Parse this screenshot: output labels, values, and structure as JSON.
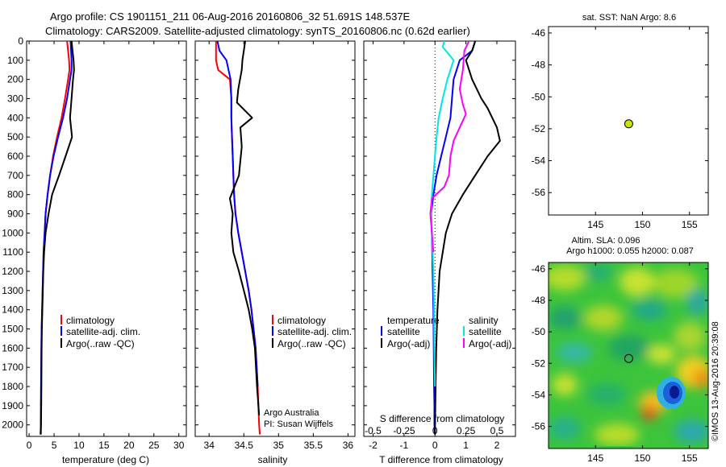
{
  "header": {
    "line1": "Argo profile: CS 1901151_211 06-Aug-2016 20160806_32 51.691S 148.537E",
    "line2": "Climatology: CARS2009. Satellite-adjusted climatology: synTS_20160806.nc (0.62d earlier)"
  },
  "credits": {
    "agency": "Argo Australia",
    "pi": "PI: Susan Wijffels",
    "timestamp": "©IMOS 13-Aug-2016 20:39:08"
  },
  "colors": {
    "climatology": "#ff0000",
    "satellite": "#0000ff",
    "argo": "#000000",
    "salinity_satellite": "#00e5e5",
    "salinity_argo": "#ff00ff",
    "marker": "#c8e600"
  },
  "chart_data": [
    {
      "type": "line",
      "id": "temperature",
      "xlabel": "temperature (deg C)",
      "ylabel": "",
      "xlim": [
        -0.5,
        31.5
      ],
      "ylim": [
        2060,
        0
      ],
      "xticks": [
        0,
        5,
        10,
        15,
        20,
        25,
        30
      ],
      "yticks": [
        0,
        100,
        200,
        300,
        400,
        500,
        600,
        700,
        800,
        900,
        1000,
        1100,
        1200,
        1300,
        1400,
        1500,
        1600,
        1700,
        1800,
        1900,
        2000
      ],
      "legend": [
        "climatology",
        "satellite-adj. clim.",
        "Argo(..raw -QC)"
      ],
      "legend_position": "lower-center",
      "series": [
        {
          "name": "climatology",
          "color": "#ff0000",
          "x": [
            7.6,
            7.8,
            8.0,
            8.1,
            7.8,
            7.2,
            6.5,
            5.6,
            4.8,
            4.2,
            3.7,
            3.3,
            3.1,
            2.9,
            2.8,
            2.7,
            2.6,
            2.5,
            2.45,
            2.4,
            2.35,
            2.3
          ],
          "y": [
            0,
            50,
            100,
            150,
            200,
            300,
            400,
            500,
            600,
            700,
            800,
            900,
            1000,
            1100,
            1200,
            1300,
            1400,
            1500,
            1600,
            1800,
            2000,
            2050
          ]
        },
        {
          "name": "satellite-adj. clim.",
          "color": "#0000ff",
          "x": [
            8.3,
            8.4,
            8.5,
            8.5,
            8.2,
            7.6,
            6.8,
            5.8,
            4.9,
            4.2,
            3.7,
            3.3,
            3.1,
            2.9,
            2.8,
            2.7,
            2.6,
            2.5,
            2.45,
            2.4,
            2.35,
            2.3
          ],
          "y": [
            0,
            50,
            100,
            150,
            200,
            300,
            400,
            500,
            600,
            700,
            800,
            900,
            1000,
            1100,
            1200,
            1300,
            1400,
            1500,
            1600,
            1800,
            2000,
            2050
          ]
        },
        {
          "name": "Argo(..raw -QC)",
          "color": "#000000",
          "x": [
            8.5,
            8.7,
            8.9,
            9.0,
            8.8,
            8.5,
            8.2,
            8.6,
            7.3,
            6.0,
            4.6,
            3.9,
            3.3,
            3.0,
            2.85,
            2.75,
            2.65,
            2.55,
            2.5,
            2.45,
            2.4,
            2.35
          ],
          "y": [
            0,
            50,
            100,
            150,
            200,
            300,
            400,
            500,
            600,
            700,
            800,
            900,
            1000,
            1100,
            1200,
            1300,
            1400,
            1500,
            1600,
            1800,
            2000,
            2050
          ]
        }
      ]
    },
    {
      "type": "line",
      "id": "salinity",
      "xlabel": "salinity",
      "ylabel": "",
      "xlim": [
        33.8,
        36.1
      ],
      "ylim": [
        2060,
        0
      ],
      "xticks": [
        34,
        34.5,
        35,
        35.5,
        36
      ],
      "legend": [
        "climatology",
        "satellite-adj. clim.",
        "Argo(..raw -QC)"
      ],
      "legend_position": "lower-center",
      "series": [
        {
          "name": "climatology",
          "color": "#ff0000",
          "x": [
            34.1,
            34.1,
            34.1,
            34.13,
            34.3,
            34.32,
            34.32,
            34.33,
            34.34,
            34.35,
            34.36,
            34.38,
            34.42,
            34.47,
            34.52,
            34.57,
            34.61,
            34.64,
            34.67,
            34.7,
            34.72,
            34.73
          ],
          "y": [
            0,
            50,
            100,
            150,
            200,
            300,
            400,
            500,
            600,
            700,
            800,
            900,
            1000,
            1100,
            1200,
            1300,
            1400,
            1500,
            1600,
            1800,
            2000,
            2050
          ]
        },
        {
          "name": "satellite-adj. clim.",
          "color": "#0000ff",
          "x": [
            34.12,
            34.15,
            34.25,
            34.28,
            34.31,
            34.32,
            34.32,
            34.33,
            34.34,
            34.35,
            34.36,
            34.38,
            34.42,
            34.47,
            34.52,
            34.57,
            34.61,
            34.64,
            34.67,
            34.7
          ],
          "y": [
            0,
            50,
            100,
            150,
            200,
            300,
            400,
            500,
            600,
            700,
            800,
            900,
            1000,
            1100,
            1200,
            1300,
            1400,
            1500,
            1600,
            1800
          ]
        },
        {
          "name": "Argo(..raw -QC)",
          "color": "#000000",
          "x": [
            34.52,
            34.5,
            34.48,
            34.47,
            34.42,
            34.4,
            34.62,
            34.45,
            34.47,
            34.43,
            34.3,
            34.34,
            34.32,
            34.35,
            34.43,
            34.5,
            34.57,
            34.62,
            34.66,
            34.69,
            34.72
          ],
          "y": [
            0,
            50,
            100,
            150,
            250,
            320,
            400,
            450,
            550,
            700,
            820,
            900,
            1000,
            1100,
            1200,
            1300,
            1400,
            1500,
            1600,
            1800,
            1950
          ]
        }
      ]
    },
    {
      "type": "line",
      "id": "difference",
      "xlabel": "T difference from climatology",
      "xlabel2": "S difference from climatology",
      "xlim": [
        -2.3,
        2.6
      ],
      "ylim": [
        2060,
        0
      ],
      "xticks": [
        -2,
        -1,
        0,
        1,
        2
      ],
      "xticks_top": [
        -0.5,
        -0.25,
        0,
        0.25,
        0.5
      ],
      "legend_temperature_title": "temperature",
      "legend_salinity_title": "salinity",
      "legend_temperature": [
        "satellite",
        "Argo(-adj)"
      ],
      "legend_salinity": [
        "satellite",
        "Argo(-adj)"
      ],
      "series": [
        {
          "name": "satellite",
          "color": "#0000ff",
          "x": [
            1.3,
            1.2,
            0.8,
            0.7,
            0.6,
            0.55,
            0.5,
            0.35,
            0.2,
            0.05,
            -0.05,
            -0.12,
            -0.1,
            -0.08,
            -0.05,
            -0.04,
            -0.03,
            -0.02,
            -0.02,
            0.0
          ],
          "y": [
            0,
            50,
            100,
            150,
            200,
            300,
            400,
            500,
            600,
            700,
            800,
            900,
            1000,
            1200,
            1400,
            1600,
            1800,
            1900,
            2000,
            2050
          ]
        },
        {
          "name": "Argo(-adj)",
          "color": "#000000",
          "x": [
            1.3,
            1.2,
            1.0,
            1.2,
            1.5,
            1.7,
            2.0,
            2.1,
            1.7,
            1.3,
            0.9,
            0.55,
            0.35,
            0.15,
            0.08,
            0.04,
            0.02,
            0.0
          ],
          "y": [
            0,
            50,
            100,
            200,
            300,
            350,
            450,
            520,
            600,
            700,
            800,
            900,
            1000,
            1200,
            1400,
            1600,
            1800,
            2050
          ]
        },
        {
          "name": "satellite",
          "color": "#00e5e5",
          "x": [
            0.3,
            0.25,
            0.6,
            0.4,
            0.25,
            0.12,
            0.05,
            0.0,
            -0.05,
            -0.1,
            -0.12,
            -0.1,
            -0.05,
            -0.03,
            -0.02,
            0.0
          ],
          "y": [
            0,
            30,
            100,
            200,
            300,
            400,
            500,
            600,
            700,
            800,
            900,
            1000,
            1200,
            1400,
            1600,
            1800
          ]
        },
        {
          "name": "Argo(-adj)",
          "color": "#ff00ff",
          "x": [
            1.1,
            0.95,
            0.9,
            0.8,
            0.9,
            1.0,
            0.8,
            0.6,
            0.5,
            0.45,
            0.3,
            -0.1,
            -0.15,
            -0.1,
            -0.05
          ],
          "y": [
            0,
            50,
            150,
            250,
            330,
            380,
            450,
            520,
            600,
            700,
            760,
            820,
            900,
            1000,
            1100
          ]
        }
      ]
    },
    {
      "type": "scatter",
      "id": "sst",
      "title": "sat. SST: NaN Argo: 8.6",
      "xlim": [
        140,
        157
      ],
      "ylim": [
        -57.4,
        -45.6
      ],
      "xticks": [
        145,
        150,
        155
      ],
      "yticks": [
        -46,
        -48,
        -50,
        -52,
        -54,
        -56
      ],
      "points": [
        {
          "x": 148.537,
          "y": -51.691
        }
      ]
    },
    {
      "type": "heatmap",
      "id": "sla",
      "title1": "Altim. SLA: 0.096",
      "title2": "Argo h1000: 0.055 h2000: 0.087",
      "xlim": [
        140,
        157
      ],
      "ylim": [
        -57.4,
        -45.6
      ],
      "xticks": [
        145,
        150,
        155
      ],
      "yticks": [
        -46,
        -48,
        -50,
        -52,
        -54,
        -56
      ],
      "points": [
        {
          "x": 148.537,
          "y": -51.691
        }
      ]
    }
  ]
}
